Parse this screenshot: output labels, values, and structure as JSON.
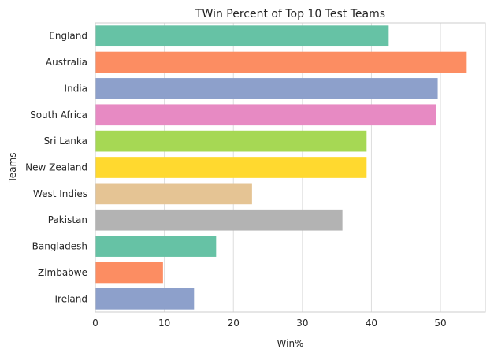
{
  "chart_data": {
    "type": "bar",
    "orientation": "horizontal",
    "title": "TWin Percent of Top 10 Test Teams",
    "xlabel": "Win%",
    "ylabel": "Teams",
    "categories": [
      "England",
      "Australia",
      "India",
      "South Africa",
      "Sri Lanka",
      "New Zealand",
      "West Indies",
      "Pakistan",
      "Bangladesh",
      "Zimbabwe",
      "Ireland"
    ],
    "values": [
      42.5,
      53.8,
      49.6,
      49.4,
      39.3,
      39.3,
      22.7,
      35.8,
      17.5,
      9.8,
      14.3
    ],
    "colors": [
      "#66c2a5",
      "#fc8d62",
      "#8da0cb",
      "#e78ac3",
      "#a6d854",
      "#ffd92f",
      "#e5c494",
      "#b3b3b3",
      "#66c2a5",
      "#fc8d62",
      "#8da0cb"
    ],
    "xlim": [
      0,
      56.5
    ],
    "xticks": [
      0,
      10,
      20,
      30,
      40,
      50
    ],
    "grid": true
  }
}
